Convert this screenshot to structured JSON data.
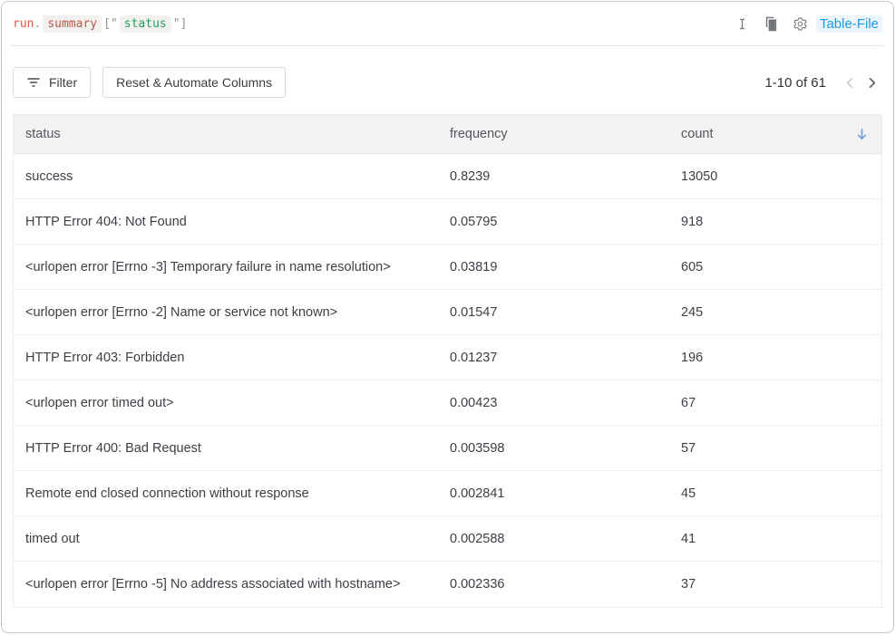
{
  "code_bar": {
    "expression": [
      {
        "text": "run",
        "type": "var"
      },
      {
        "text": ".",
        "type": "punct"
      },
      {
        "text": "summary",
        "type": "prop"
      },
      {
        "text": "[",
        "type": "punct"
      },
      {
        "text": "\"",
        "type": "punct"
      },
      {
        "text": "status",
        "type": "string"
      },
      {
        "text": "\"",
        "type": "punct"
      },
      {
        "text": "]",
        "type": "punct"
      }
    ],
    "panel_type_label": "Table-File"
  },
  "toolbar": {
    "filter_label": "Filter",
    "reset_columns_label": "Reset & Automate Columns",
    "pagination_label": "1-10 of 61"
  },
  "table": {
    "columns": [
      "status",
      "frequency",
      "count"
    ],
    "sort": {
      "column": "count",
      "direction": "desc"
    },
    "rows": [
      {
        "status": "success",
        "frequency": "0.8239",
        "count": "13050"
      },
      {
        "status": "HTTP Error 404: Not Found",
        "frequency": "0.05795",
        "count": "918"
      },
      {
        "status": "<urlopen error [Errno -3] Temporary failure in name resolution>",
        "frequency": "0.03819",
        "count": "605"
      },
      {
        "status": "<urlopen error [Errno -2] Name or service not known>",
        "frequency": "0.01547",
        "count": "245"
      },
      {
        "status": "HTTP Error 403: Forbidden",
        "frequency": "0.01237",
        "count": "196"
      },
      {
        "status": "<urlopen error timed out>",
        "frequency": "0.00423",
        "count": "67"
      },
      {
        "status": "HTTP Error 400: Bad Request",
        "frequency": "0.003598",
        "count": "57"
      },
      {
        "status": "Remote end closed connection without response",
        "frequency": "0.002841",
        "count": "45"
      },
      {
        "status": "timed out",
        "frequency": "0.002588",
        "count": "41"
      },
      {
        "status": "<urlopen error [Errno -5] No address associated with hostname>",
        "frequency": "0.002336",
        "count": "37"
      }
    ]
  },
  "colors": {
    "accent-blue": "#1a9ce8",
    "token-var": "#e2573f",
    "token-prop": "#b5594c",
    "token-string": "#1ea05f",
    "token-punct": "#8d9195",
    "sort-arrow": "#5f95d2"
  }
}
